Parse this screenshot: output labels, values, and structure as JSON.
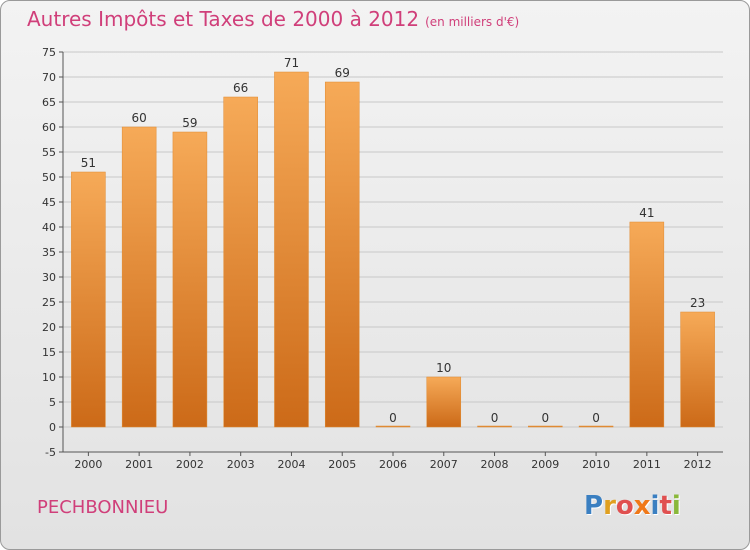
{
  "header": {
    "title": "Autres Impôts et Taxes de 2000 à 2012",
    "unit": "(en milliers d'€)"
  },
  "footer": {
    "commune": "PECHBONNIEU",
    "logo_letters": [
      {
        "ch": "P",
        "color": "#3a7fc1"
      },
      {
        "ch": "r",
        "color": "#e0a020"
      },
      {
        "ch": "o",
        "color": "#e05050"
      },
      {
        "ch": "x",
        "color": "#f07818"
      },
      {
        "ch": "i",
        "color": "#3a7fc1"
      },
      {
        "ch": "t",
        "color": "#e05050"
      },
      {
        "ch": "i",
        "color": "#8ab83a"
      }
    ]
  },
  "chart_data": {
    "type": "bar",
    "categories": [
      "2000",
      "2001",
      "2002",
      "2003",
      "2004",
      "2005",
      "2006",
      "2007",
      "2008",
      "2009",
      "2010",
      "2011",
      "2012"
    ],
    "values": [
      51,
      60,
      59,
      66,
      71,
      69,
      0,
      10,
      0,
      0,
      0,
      41,
      23
    ],
    "ylim": [
      -5,
      75
    ],
    "yticks": [
      -5,
      0,
      5,
      10,
      15,
      20,
      25,
      30,
      35,
      40,
      45,
      50,
      55,
      60,
      65,
      70,
      75
    ],
    "grid": true,
    "bar_color": "#f0a04a",
    "bar_color_dark": "#d06f1a"
  }
}
